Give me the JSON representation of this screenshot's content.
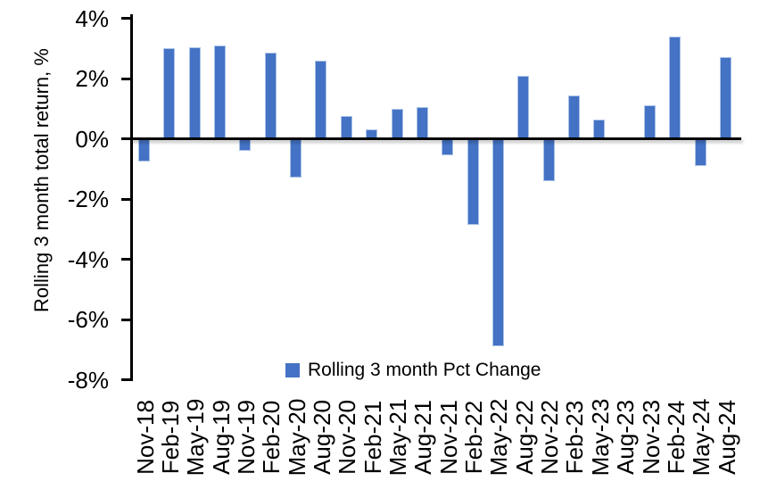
{
  "chart_data": {
    "type": "bar",
    "title": "",
    "xlabel": "",
    "ylabel": "Rolling 3 month total return, %",
    "legend": "Rolling 3 month Pct Change",
    "legend_position": "bottom-center",
    "grid": false,
    "ylim": [
      -8,
      4
    ],
    "y_tick_values": [
      4,
      2,
      0,
      -2,
      -4,
      -6,
      -8
    ],
    "y_tick_labels": [
      "4%",
      "2%",
      "0%",
      "-2%",
      "-4%",
      "-6%",
      "-8%"
    ],
    "categories": [
      "Nov-18",
      "Feb-19",
      "May-19",
      "Aug-19",
      "Nov-19",
      "Feb-20",
      "May-20",
      "Aug-20",
      "Nov-20",
      "Feb-21",
      "May-21",
      "Aug-21",
      "Nov-21",
      "Feb-22",
      "May-22",
      "Aug-22",
      "Nov-22",
      "Feb-23",
      "May-23",
      "Aug-23",
      "Nov-23",
      "Feb-24",
      "May-24",
      "Aug-24"
    ],
    "values": [
      -0.75,
      3.0,
      3.05,
      3.1,
      -0.4,
      2.85,
      -1.3,
      2.6,
      0.75,
      0.3,
      1.0,
      1.05,
      -0.55,
      -2.85,
      -6.9,
      2.1,
      -1.4,
      1.45,
      0.65,
      0.0,
      1.1,
      3.4,
      -0.9,
      2.7
    ],
    "bar_color": "#4472C4",
    "axis_color": "#000000",
    "text_color": "#000000"
  }
}
